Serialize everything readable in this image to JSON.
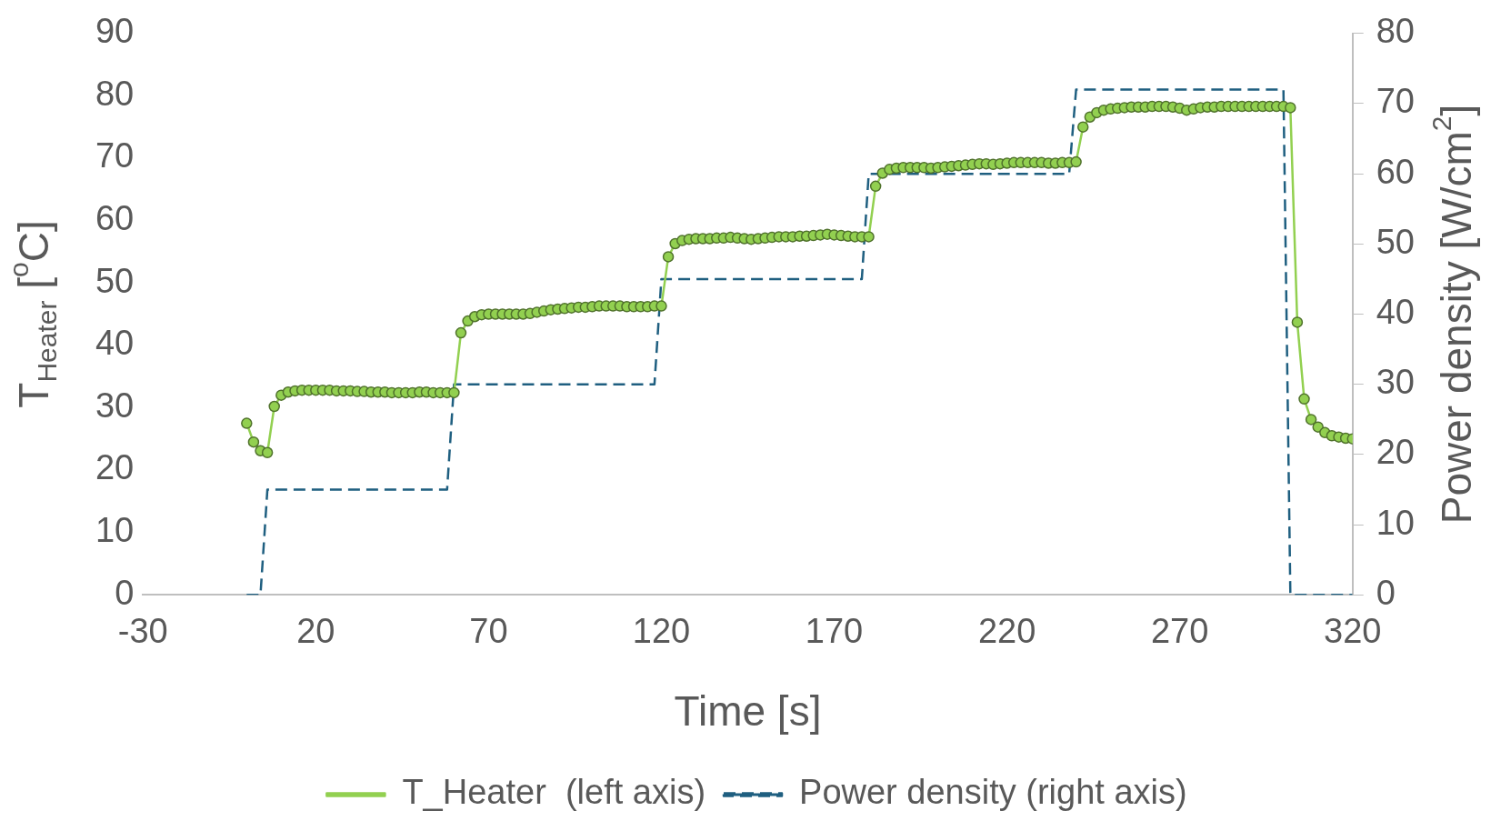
{
  "chart_data": {
    "type": "line",
    "xlabel": "Time [s]",
    "ylabel": "T$_{Heater}$ [$^{o}$C]",
    "y2label": "Power density [W/cm$^{2}$]",
    "x": [
      0,
      2,
      4,
      6,
      8,
      10,
      12,
      14,
      16,
      18,
      20,
      22,
      24,
      26,
      28,
      30,
      32,
      34,
      36,
      38,
      40,
      42,
      44,
      46,
      48,
      50,
      52,
      54,
      56,
      58,
      60,
      62,
      64,
      66,
      68,
      70,
      72,
      74,
      76,
      78,
      80,
      82,
      84,
      86,
      88,
      90,
      92,
      94,
      96,
      98,
      100,
      102,
      104,
      106,
      108,
      110,
      112,
      114,
      116,
      118,
      120,
      122,
      124,
      126,
      128,
      130,
      132,
      134,
      136,
      138,
      140,
      142,
      144,
      146,
      148,
      150,
      152,
      154,
      156,
      158,
      160,
      162,
      164,
      166,
      168,
      170,
      172,
      174,
      176,
      178,
      180,
      182,
      184,
      186,
      188,
      190,
      192,
      194,
      196,
      198,
      200,
      202,
      204,
      206,
      208,
      210,
      212,
      214,
      216,
      218,
      220,
      222,
      224,
      226,
      228,
      230,
      232,
      234,
      236,
      238,
      240,
      242,
      244,
      246,
      248,
      250,
      252,
      254,
      256,
      258,
      260,
      262,
      264,
      266,
      268,
      270,
      272,
      274,
      276,
      278,
      280,
      282,
      284,
      286,
      288,
      290,
      292,
      294,
      296,
      298,
      300,
      302,
      304,
      306,
      308,
      310,
      312,
      314,
      316,
      318,
      320
    ],
    "series": [
      {
        "name": "T_Heater  (left axis)",
        "color": "#92d050",
        "marker": "circle",
        "values": [
          27.5,
          24.5,
          23.1,
          22.8,
          30.2,
          32,
          32.5,
          32.7,
          32.8,
          32.8,
          32.8,
          32.8,
          32.8,
          32.7,
          32.7,
          32.7,
          32.6,
          32.6,
          32.5,
          32.5,
          32.5,
          32.4,
          32.4,
          32.4,
          32.4,
          32.5,
          32.5,
          32.4,
          32.4,
          32.4,
          32.4,
          42,
          43.9,
          44.6,
          44.9,
          45,
          45,
          45,
          45,
          45,
          45,
          45.1,
          45.3,
          45.5,
          45.7,
          45.8,
          45.9,
          46,
          46.1,
          46.1,
          46.2,
          46.3,
          46.3,
          46.3,
          46.3,
          46.2,
          46.2,
          46.2,
          46.2,
          46.3,
          46.3,
          54.2,
          56.3,
          56.8,
          57,
          57.1,
          57.1,
          57.1,
          57.2,
          57.2,
          57.3,
          57.2,
          57.1,
          57,
          57.1,
          57.2,
          57.3,
          57.4,
          57.4,
          57.4,
          57.5,
          57.5,
          57.6,
          57.7,
          57.8,
          57.7,
          57.6,
          57.5,
          57.4,
          57.4,
          57.4,
          65.5,
          67.6,
          68.2,
          68.4,
          68.5,
          68.5,
          68.5,
          68.5,
          68.4,
          68.5,
          68.6,
          68.7,
          68.8,
          68.9,
          69,
          69.1,
          69.1,
          69,
          69.1,
          69.2,
          69.3,
          69.3,
          69.3,
          69.3,
          69.3,
          69.2,
          69.2,
          69.3,
          69.3,
          69.4,
          75,
          76.6,
          77.3,
          77.7,
          77.9,
          78,
          78.1,
          78.2,
          78.2,
          78.2,
          78.3,
          78.3,
          78.3,
          78.2,
          78,
          77.7,
          77.9,
          78.1,
          78.2,
          78.2,
          78.3,
          78.3,
          78.3,
          78.3,
          78.3,
          78.3,
          78.3,
          78.3,
          78.3,
          78.3,
          78.1,
          43.7,
          31.4,
          28.1,
          26.9,
          26,
          25.5,
          25.3,
          25.1,
          25
        ]
      },
      {
        "name": "Power density (right axis)",
        "color": "#1f5f80",
        "axis": "y2",
        "line_style": "dashed",
        "marker": "none",
        "x": [
          0,
          4,
          6,
          58,
          60,
          118,
          120,
          178,
          180,
          238,
          240,
          300,
          302,
          320
        ],
        "values": [
          0,
          0,
          15,
          15,
          30,
          30,
          45,
          45,
          60,
          60,
          72,
          72,
          0,
          0
        ]
      }
    ],
    "xlim": [
      -30,
      320
    ],
    "xticks": [
      -30,
      20,
      70,
      120,
      170,
      220,
      270,
      320
    ],
    "ylim": [
      0,
      90
    ],
    "yticks": [
      0,
      10,
      20,
      30,
      40,
      50,
      60,
      70,
      80,
      90
    ],
    "y2lim": [
      0,
      80
    ],
    "y2ticks": [
      0,
      10,
      20,
      30,
      40,
      50,
      60,
      70,
      80
    ],
    "grid": false,
    "legend": "bottom"
  }
}
